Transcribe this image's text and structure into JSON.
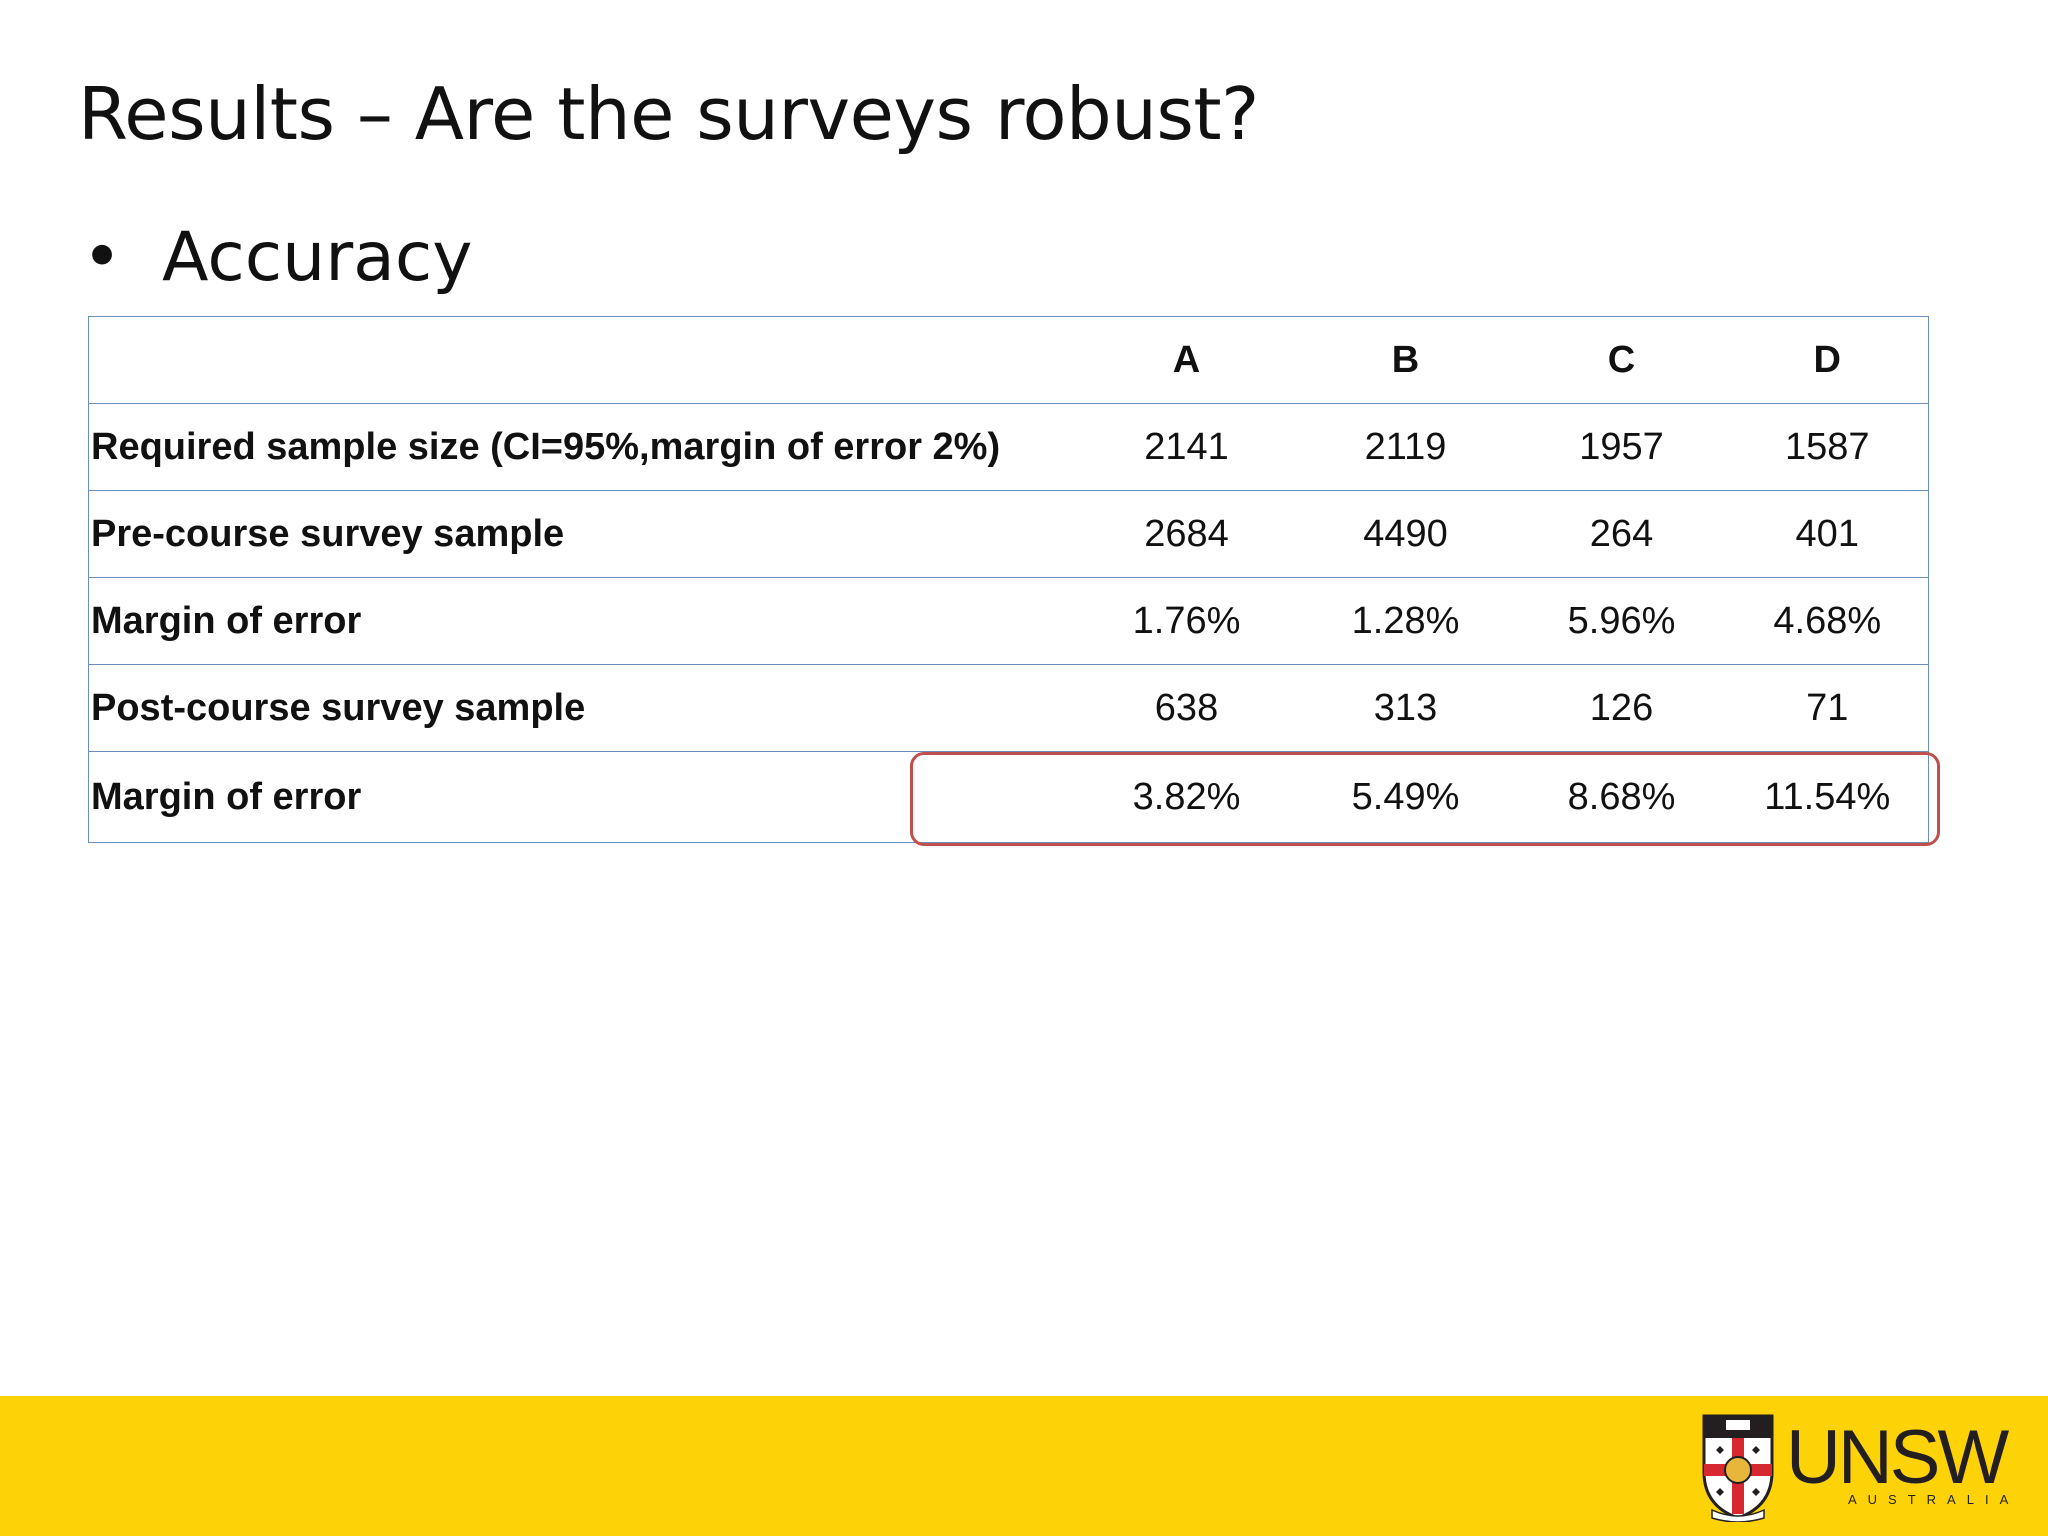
{
  "slide": {
    "title": "Results – Are the surveys robust?",
    "bullet": "Accuracy"
  },
  "table": {
    "columns": [
      "",
      "A",
      "B",
      "C",
      "D"
    ],
    "rows": [
      {
        "label": "Required sample size (CI=95%,margin of error 2%)",
        "values": [
          "2141",
          "2119",
          "1957",
          "1587"
        ]
      },
      {
        "label": "Pre-course survey sample",
        "values": [
          "2684",
          "4490",
          "264",
          "401"
        ]
      },
      {
        "label": "Margin of error",
        "values": [
          "1.76%",
          "1.28%",
          "5.96%",
          "4.68%"
        ]
      },
      {
        "label": "Post-course survey sample",
        "values": [
          "638",
          "313",
          "126",
          "71"
        ]
      },
      {
        "label": "Margin of error",
        "values": [
          "3.82%",
          "5.49%",
          "8.68%",
          "11.54%"
        ]
      }
    ],
    "highlighted_row": 4
  },
  "footer": {
    "logo_text": "UNSW",
    "logo_subtext": "AUSTRALIA",
    "background_color": "#fdd308"
  },
  "colors": {
    "highlight": "#c0504d",
    "table_border": "#6b8fbd"
  }
}
